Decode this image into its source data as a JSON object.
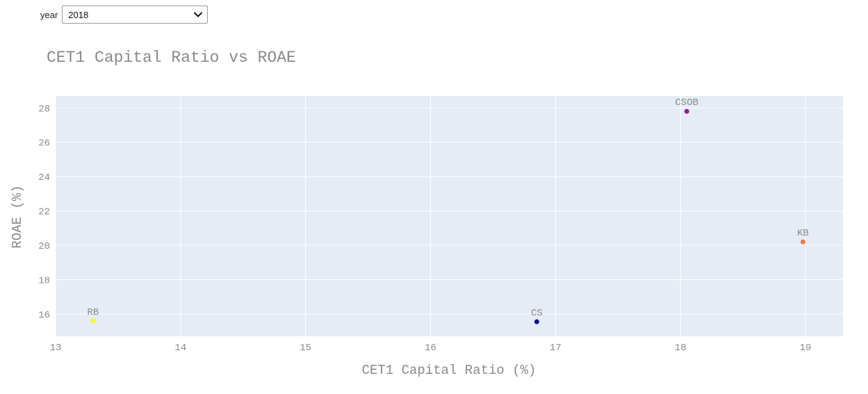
{
  "filter": {
    "label": "year",
    "selected": "2018",
    "chevron_icon": "chevron-down-icon"
  },
  "chart_data": {
    "type": "scatter",
    "title": "CET1 Capital Ratio vs ROAE",
    "xlabel": "CET1 Capital Ratio (%)",
    "ylabel": "ROAE (%)",
    "xlim": [
      13,
      19.3
    ],
    "ylim": [
      14.7,
      28.7
    ],
    "xticks": [
      13,
      14,
      15,
      16,
      17,
      18,
      19
    ],
    "yticks": [
      16,
      18,
      20,
      22,
      24,
      26,
      28
    ],
    "grid": true,
    "points": [
      {
        "label": "RB",
        "x": 13.3,
        "y": 15.6,
        "color": "#f0f921"
      },
      {
        "label": "CS",
        "x": 16.85,
        "y": 15.55,
        "color": "#0d0887"
      },
      {
        "label": "CSOB",
        "x": 18.05,
        "y": 27.8,
        "color": "#9c179e"
      },
      {
        "label": "KB",
        "x": 18.98,
        "y": 20.2,
        "color": "#ed7953"
      }
    ],
    "colors": {
      "plot_bg": "#e5ecf6",
      "grid": "#ffffff",
      "text": "#8a8a8a"
    }
  }
}
